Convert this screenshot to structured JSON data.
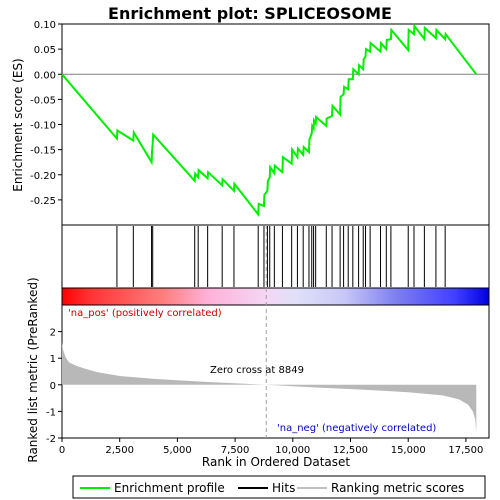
{
  "chart_data": [
    {
      "panel": "enrichment-score",
      "type": "line",
      "title": "Enrichment plot: SPLICEOSOME",
      "ylabel": "Enrichment score (ES)",
      "xlim": [
        0,
        18500
      ],
      "ylim": [
        -0.3,
        0.1
      ],
      "yticks": [
        "-0.25",
        "-0.20",
        "-0.15",
        "-0.10",
        "-0.05",
        "0.00",
        "0.05",
        "0.10"
      ],
      "ytick_values": [
        -0.25,
        -0.2,
        -0.15,
        -0.1,
        -0.05,
        0.0,
        0.05,
        0.1
      ],
      "grid": false,
      "series": [
        {
          "name": "Enrichment profile",
          "color": "#00ee00",
          "x": [
            0,
            2380,
            2400,
            3090,
            3110,
            3880,
            3900,
            3930,
            3950,
            5750,
            5770,
            5900,
            5920,
            6310,
            6330,
            6940,
            6960,
            7450,
            7470,
            8500,
            8520,
            8750,
            8770,
            8900,
            8920,
            9000,
            9020,
            9200,
            9220,
            9550,
            9570,
            9950,
            9970,
            10200,
            10220,
            10450,
            10470,
            10700,
            10720,
            10820,
            10840,
            10900,
            10920,
            10990,
            11010,
            11450,
            11470,
            11700,
            11720,
            12050,
            12070,
            12200,
            12220,
            12400,
            12420,
            12600,
            12620,
            12850,
            12870,
            13050,
            13070,
            13150,
            13170,
            13350,
            13370,
            13800,
            13820,
            14050,
            14070,
            14250,
            14270,
            15000,
            15020,
            15250,
            15270,
            15700,
            15720,
            16200,
            16220,
            16600,
            16620,
            17950
          ],
          "y": [
            0.0,
            -0.128,
            -0.112,
            -0.132,
            -0.116,
            -0.175,
            -0.155,
            -0.138,
            -0.12,
            -0.212,
            -0.198,
            -0.205,
            -0.191,
            -0.207,
            -0.195,
            -0.221,
            -0.209,
            -0.232,
            -0.218,
            -0.279,
            -0.258,
            -0.262,
            -0.24,
            -0.232,
            -0.212,
            -0.205,
            -0.185,
            -0.197,
            -0.182,
            -0.195,
            -0.165,
            -0.178,
            -0.15,
            -0.165,
            -0.148,
            -0.16,
            -0.145,
            -0.155,
            -0.13,
            -0.118,
            -0.103,
            -0.108,
            -0.092,
            -0.098,
            -0.085,
            -0.103,
            -0.088,
            -0.083,
            -0.063,
            -0.08,
            -0.045,
            -0.04,
            -0.025,
            -0.03,
            -0.01,
            -0.01,
            0.01,
            0.0,
            0.018,
            0.01,
            0.03,
            0.035,
            0.05,
            0.045,
            0.062,
            0.045,
            0.062,
            0.05,
            0.068,
            0.07,
            0.088,
            0.048,
            0.088,
            0.08,
            0.096,
            0.07,
            0.092,
            0.072,
            0.088,
            0.07,
            0.08,
            0.0
          ]
        }
      ]
    },
    {
      "panel": "hits",
      "type": "scatter",
      "series": [
        {
          "name": "Hits",
          "color": "#000000",
          "x": [
            2380,
            3090,
            3880,
            3930,
            5750,
            5900,
            6310,
            6940,
            7450,
            8500,
            8750,
            8900,
            9000,
            9200,
            9550,
            9950,
            10200,
            10450,
            10700,
            10820,
            10900,
            10990,
            11450,
            11700,
            12050,
            12200,
            12400,
            12600,
            12850,
            13050,
            13150,
            13350,
            13800,
            14050,
            14250,
            15000,
            15250,
            15700,
            16200,
            16600
          ]
        }
      ]
    },
    {
      "panel": "ranking-metric",
      "type": "area",
      "xlabel": "Rank in Ordered Dataset",
      "ylabel": "Ranked list metric (PreRanked)",
      "xlim": [
        0,
        18500
      ],
      "ylim": [
        -2,
        3
      ],
      "xticks": [
        "0",
        "2,500",
        "5,000",
        "7,500",
        "10,000",
        "12,500",
        "15,000",
        "17,500"
      ],
      "xtick_values": [
        0,
        2500,
        5000,
        7500,
        10000,
        12500,
        15000,
        17500
      ],
      "yticks": [
        "-2",
        "-1",
        "0",
        "1",
        "2"
      ],
      "ytick_values": [
        -2,
        -1,
        0,
        1,
        2
      ],
      "series": [
        {
          "name": "Ranking metric scores",
          "color": "#c0c0c0",
          "x": [
            0,
            50,
            150,
            300,
            600,
            1000,
            1500,
            2500,
            4000,
            6000,
            8849,
            11000,
            13000,
            15000,
            16500,
            17200,
            17600,
            17800,
            17900,
            17950
          ],
          "y": [
            1.6,
            1.3,
            1.05,
            0.85,
            0.72,
            0.6,
            0.48,
            0.33,
            0.22,
            0.12,
            0.0,
            -0.1,
            -0.18,
            -0.28,
            -0.4,
            -0.55,
            -0.75,
            -1.0,
            -1.3,
            -1.8
          ]
        }
      ],
      "annotations": {
        "zero_cross": "Zero cross at 8849",
        "zero_cross_x": 8849,
        "pos_label": "'na_pos' (positively correlated)",
        "neg_label": "'na_neg' (negatively correlated)"
      }
    }
  ],
  "legend": {
    "items": [
      {
        "label": "Enrichment profile",
        "color": "#00ee00"
      },
      {
        "label": "Hits",
        "color": "#000000"
      },
      {
        "label": "Ranking metric scores",
        "color": "#c0c0c0"
      }
    ]
  },
  "colors": {
    "pos_text": "#cc0000",
    "neg_text": "#0000cc",
    "heat_red": "#ff0000",
    "heat_blue": "#0000ff"
  }
}
